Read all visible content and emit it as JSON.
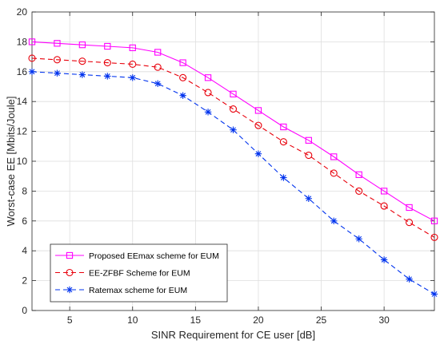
{
  "chart_data": {
    "type": "line",
    "title": "",
    "xlabel": "SINR Requirement for CE user [dB]",
    "ylabel": "Worst-case EE [Mbits/Joule]",
    "xlim": [
      2,
      34
    ],
    "ylim": [
      0,
      20
    ],
    "xticks": [
      5,
      10,
      15,
      20,
      25,
      30
    ],
    "yticks": [
      0,
      2,
      4,
      6,
      8,
      10,
      12,
      14,
      16,
      18,
      20
    ],
    "grid": true,
    "legend_position": "bottom-left",
    "x": [
      2,
      4,
      6,
      8,
      10,
      12,
      14,
      16,
      18,
      20,
      22,
      24,
      26,
      28,
      30,
      32,
      34
    ],
    "series": [
      {
        "name": "Proposed EEmax scheme for EUM",
        "color": "#ff00ff",
        "line_style": "solid",
        "marker": "square",
        "values": [
          18.0,
          17.9,
          17.8,
          17.7,
          17.6,
          17.3,
          16.6,
          15.6,
          14.5,
          13.4,
          12.3,
          11.4,
          10.3,
          9.1,
          8.0,
          6.9,
          6.0
        ]
      },
      {
        "name": "EE-ZFBF Scheme for EUM",
        "color": "#e8000b",
        "line_style": "dashed",
        "marker": "circle",
        "values": [
          16.9,
          16.8,
          16.7,
          16.6,
          16.5,
          16.3,
          15.6,
          14.6,
          13.5,
          12.4,
          11.3,
          10.4,
          9.2,
          8.0,
          7.0,
          5.9,
          4.9
        ]
      },
      {
        "name": "Ratemax scheme for EUM",
        "color": "#0033ee",
        "line_style": "dashed",
        "marker": "asterisk",
        "values": [
          16.0,
          15.9,
          15.8,
          15.7,
          15.6,
          15.2,
          14.4,
          13.3,
          12.1,
          10.5,
          8.9,
          7.5,
          6.0,
          4.8,
          3.4,
          2.1,
          1.1
        ]
      }
    ]
  }
}
